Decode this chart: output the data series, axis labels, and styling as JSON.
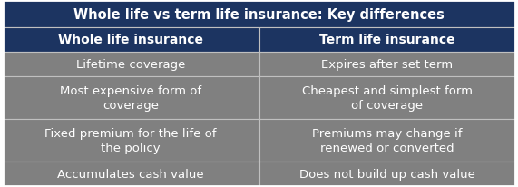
{
  "title": "Whole life vs term life insurance: Key differences",
  "col1_header": "Whole life insurance",
  "col2_header": "Term life insurance",
  "rows": [
    [
      "Lifetime coverage",
      "Expires after set term"
    ],
    [
      "Most expensive form of\ncoverage",
      "Cheapest and simplest form\nof coverage"
    ],
    [
      "Fixed premium for the life of\nthe policy",
      "Premiums may change if\nrenewed or converted"
    ],
    [
      "Accumulates cash value",
      "Does not build up cash value"
    ]
  ],
  "title_bg": "#1c3461",
  "header_bg": "#1c3461",
  "row_bg": "#808080",
  "title_color": "#ffffff",
  "header_color": "#ffffff",
  "row_color": "#ffffff",
  "border_color": "#ffffff",
  "line_color": "#c0c0c0",
  "title_fontsize": 10.5,
  "header_fontsize": 10,
  "row_fontsize": 9.5,
  "fig_width": 5.71,
  "fig_height": 2.07,
  "dpi": 100
}
